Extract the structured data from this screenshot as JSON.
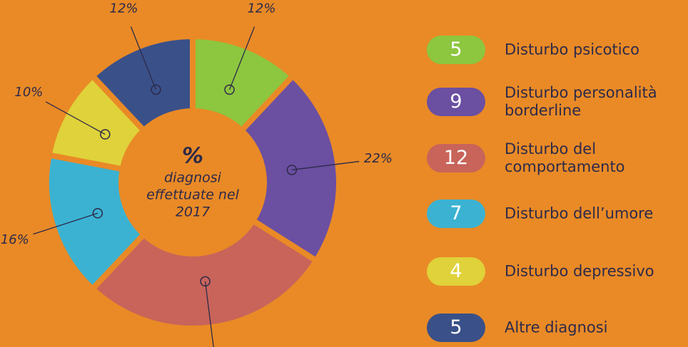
{
  "chart_data": {
    "type": "donut",
    "center_text": [
      "%",
      "diagnosi",
      "effettuate nel",
      "2017"
    ],
    "categories": [
      "Disturbo psicotico",
      "Disturbo personalità\nborderline",
      "Disturbo del\ncomportamento",
      "Disturbo dell’umore",
      "Disturbo depressivo",
      "Altre diagnosi"
    ],
    "values": [
      12,
      22,
      28,
      16,
      10,
      12
    ],
    "value_labels": [
      "12%",
      "22%",
      null,
      "16%",
      "10%",
      "12%"
    ],
    "counts": [
      5,
      9,
      12,
      7,
      4,
      5
    ],
    "colors": [
      "#8dc63f",
      "#6b4fa1",
      "#c8645a",
      "#3bb2d2",
      "#e0d23a",
      "#3a5089"
    ]
  }
}
